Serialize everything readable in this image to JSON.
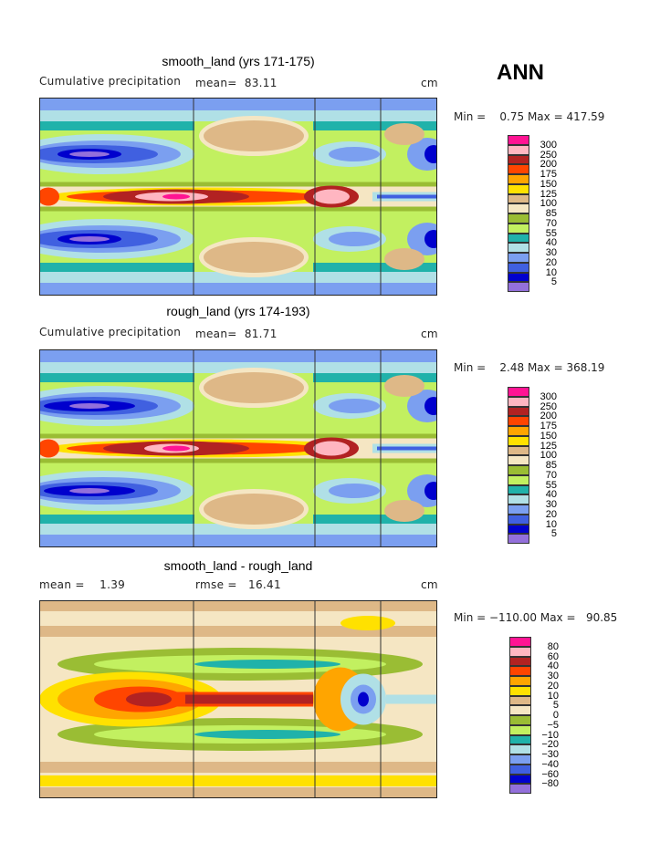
{
  "season": "ANN",
  "units_label": "cm",
  "colors": [
    "#ff1493",
    "#ffb6c1",
    "#b22222",
    "#ff4500",
    "#ffa500",
    "#ffe100",
    "#deb887",
    "#f5e6c3",
    "#9abd34",
    "#c2f060",
    "#20b2aa",
    "#b0e0e6",
    "#7b9ff0",
    "#4060e0",
    "#0000cd",
    "#9370db"
  ],
  "chart_data": [
    {
      "type": "heatmap",
      "title": "smooth_land (yrs 171-175)",
      "subtitle": "Cumulative precipitation",
      "mean_text": "mean=  83.11",
      "units": "cm",
      "minmax_text": "Min =    0.75 Max = 417.59",
      "min": 0.75,
      "max": 417.59,
      "mean": 83.11,
      "levels": [
        "300",
        "250",
        "200",
        "175",
        "150",
        "125",
        "100",
        "85",
        "70",
        "55",
        "40",
        "30",
        "20",
        "10",
        "5"
      ]
    },
    {
      "type": "heatmap",
      "title": "rough_land (yrs 174-193)",
      "subtitle": "Cumulative precipitation",
      "mean_text": "mean=  81.71",
      "units": "cm",
      "minmax_text": "Min =    2.48 Max = 368.19",
      "min": 2.48,
      "max": 368.19,
      "mean": 81.71,
      "levels": [
        "300",
        "250",
        "200",
        "175",
        "150",
        "125",
        "100",
        "85",
        "70",
        "55",
        "40",
        "30",
        "20",
        "10",
        "5"
      ]
    },
    {
      "type": "heatmap",
      "title": "smooth_land - rough_land",
      "subtitle": "mean =    1.39",
      "mean_text": "rmse =   16.41",
      "units": "cm",
      "minmax_text": "Min = −110.00 Max =   90.85",
      "min": -110.0,
      "max": 90.85,
      "mean": 1.39,
      "rmse": 16.41,
      "levels": [
        "80",
        "60",
        "40",
        "30",
        "20",
        "10",
        "5",
        "0",
        "−5",
        "−10",
        "−20",
        "−30",
        "−40",
        "−60",
        "−80"
      ]
    }
  ]
}
